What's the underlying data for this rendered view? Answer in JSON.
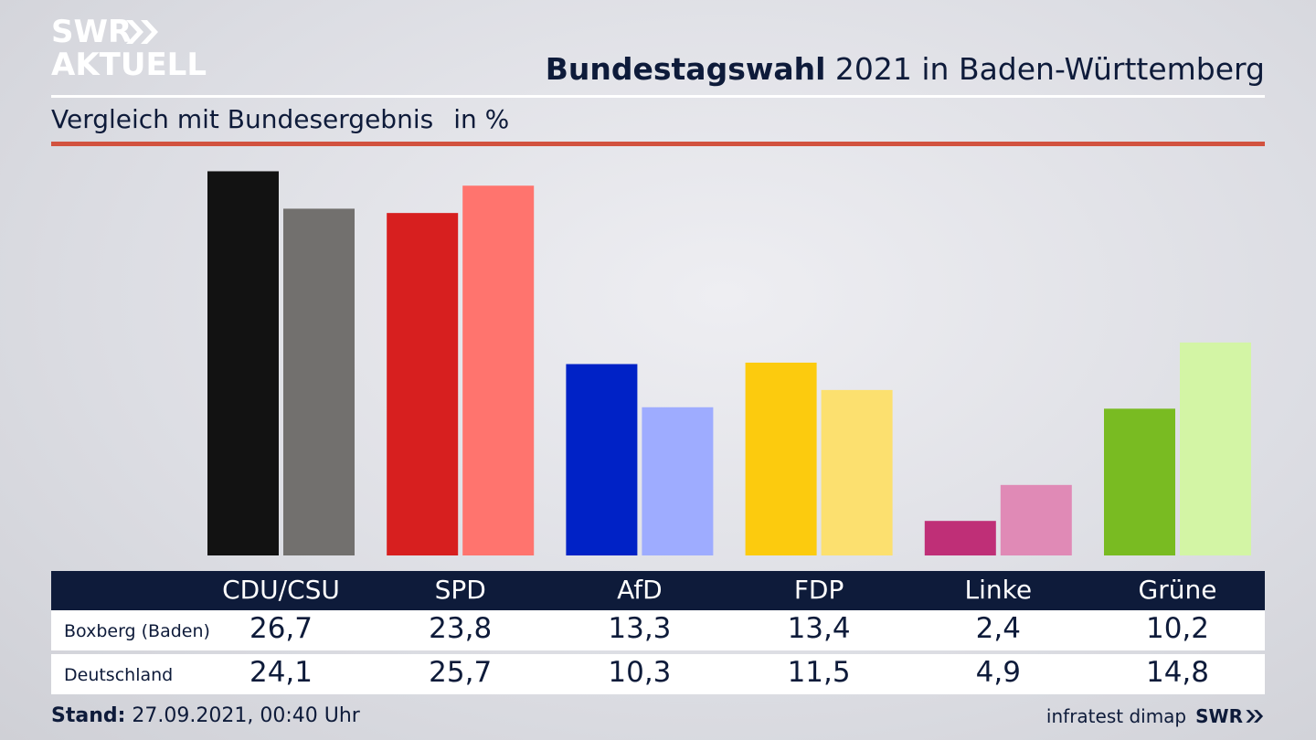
{
  "logo": {
    "line1": "SWR",
    "line2": "AKTUELL"
  },
  "header": {
    "title_bold": "Bundestagswahl",
    "title_rest": " 2021 in Baden-Württemberg",
    "subtitle": "Vergleich mit Bundesergebnis",
    "unit": "in %"
  },
  "colors": {
    "navy": "#0e1b3a",
    "red_rule": "#d2523f"
  },
  "chart_data": {
    "type": "bar",
    "title": "Bundestagswahl 2021 in Baden-Württemberg",
    "subtitle": "Vergleich mit Bundesergebnis",
    "unit": "in %",
    "categories": [
      "CDU/CSU",
      "SPD",
      "AfD",
      "FDP",
      "Linke",
      "Grüne"
    ],
    "series": [
      {
        "name": "Boxberg (Baden)",
        "values": [
          26.7,
          23.8,
          13.3,
          13.4,
          2.4,
          10.2
        ],
        "labels": [
          "26,7",
          "23,8",
          "13,3",
          "13,4",
          "2,4",
          "10,2"
        ],
        "colors": [
          "#121212",
          "#d71f1f",
          "#0022c6",
          "#fccb0e",
          "#bf2f77",
          "#79bb22"
        ]
      },
      {
        "name": "Deutschland",
        "values": [
          24.1,
          25.7,
          10.3,
          11.5,
          4.9,
          14.8
        ],
        "labels": [
          "24,1",
          "25,7",
          "10,3",
          "11,5",
          "4,9",
          "14,8"
        ],
        "colors": [
          "#72706e",
          "#ff746e",
          "#9eacff",
          "#fce06f",
          "#e08ab6",
          "#d3f5a5"
        ]
      }
    ],
    "grid": false,
    "legend": "table-below"
  },
  "footer": {
    "stand_label": "Stand:",
    "stand_value": " 27.09.2021, 00:40 Uhr",
    "source": "infratest dimap",
    "brand": "SWR"
  }
}
